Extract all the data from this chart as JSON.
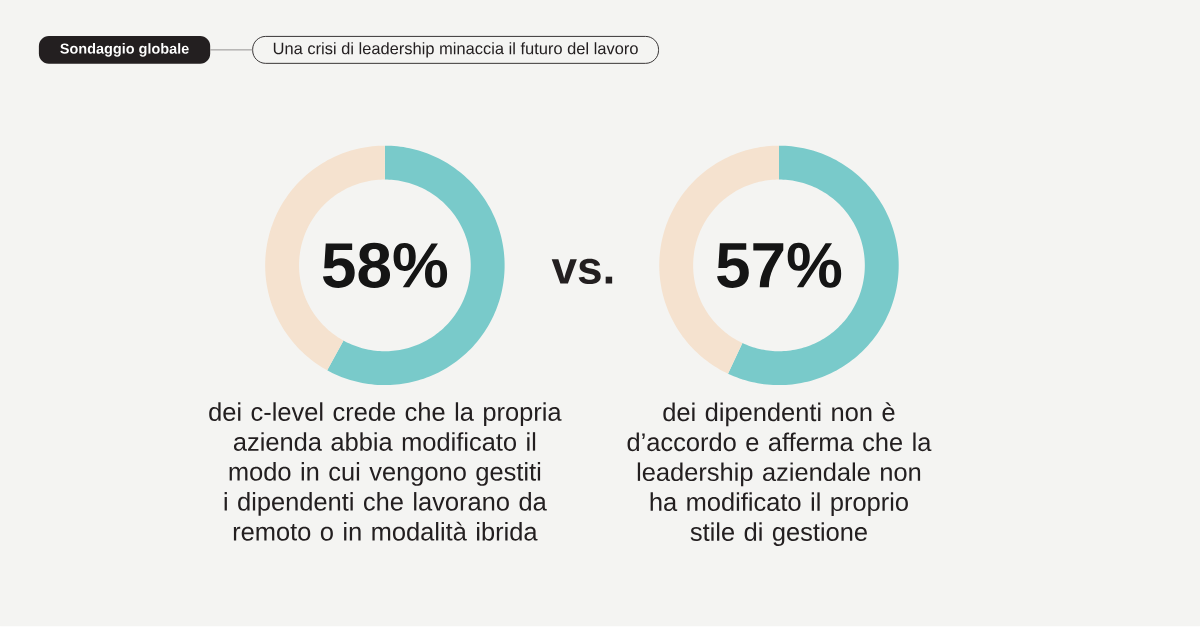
{
  "chart_data": [
    {
      "type": "donut",
      "title": "Sondaggio globale",
      "subtitle": "Una crisi di leadership minaccia il futuro del lavoro",
      "categories": [
        null,
        null
      ],
      "values": [
        58,
        42
      ],
      "colors": [
        "#79caca",
        "#f5e2cf"
      ],
      "value_labels": [
        "58%",
        null
      ],
      "annotations": [
        "dei c-level crede che la propria\nazienda abbia modificato il\nmodo in cui vengono gestiti\ni dipendenti che lavorano da\nremoto o in modalità ibrida"
      ]
    },
    {
      "type": "other",
      "annotations": [
        "vs."
      ]
    },
    {
      "type": "donut",
      "categories": [
        null,
        null
      ],
      "values": [
        57,
        43
      ],
      "colors": [
        "#79caca",
        "#f5e2cf"
      ],
      "value_labels": [
        "57%",
        null
      ],
      "annotations": [
        "dei dipendenti non è\nd’accordo e afferma che la\nleadership aziendale non\nha modificato il proprio\nstile di gestione"
      ]
    }
  ]
}
